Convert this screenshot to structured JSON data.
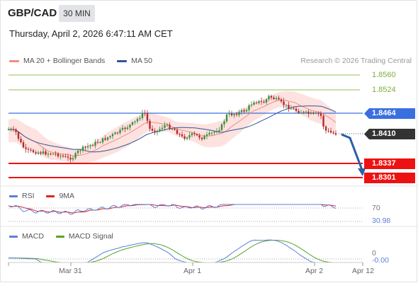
{
  "header": {
    "pair": "GBP/CAD",
    "timeframe": "30 MIN",
    "datetime": "Thursday, April 2, 2026 6:47:11 AM CET"
  },
  "legend_main": [
    {
      "label": "MA 20 + Bollinger Bands",
      "color": "#f28b82"
    },
    {
      "label": "MA 50",
      "color": "#2f5597"
    }
  ],
  "credit": "Research © 2026 Trading Central",
  "levels": {
    "resistance_2": "1.8560",
    "resistance_1": "1.8524",
    "pivot": "1.8464",
    "last": "1.8410",
    "support_1": "1.8337",
    "support_2": "1.8301"
  },
  "colors": {
    "resistance": "#7fae3c",
    "pivot": "#3a6fe0",
    "support": "#ee1111",
    "last": "#333333",
    "forecast": "#2b5fa6"
  },
  "rsi": {
    "legend": [
      {
        "label": "RSI",
        "color": "#5b7fd6"
      },
      {
        "label": "9MA",
        "color": "#dd2222"
      }
    ],
    "level_70": "70",
    "value": "30.98"
  },
  "macd": {
    "legend": [
      {
        "label": "MACD",
        "color": "#5b7fd6"
      },
      {
        "label": "MACD Signal",
        "color": "#5aa02c"
      }
    ],
    "level_0": "0",
    "value": "-0.00"
  },
  "xaxis": {
    "labels": [
      "Mar 31",
      "Apr 1",
      "Apr 2",
      "Apr 12"
    ]
  }
}
